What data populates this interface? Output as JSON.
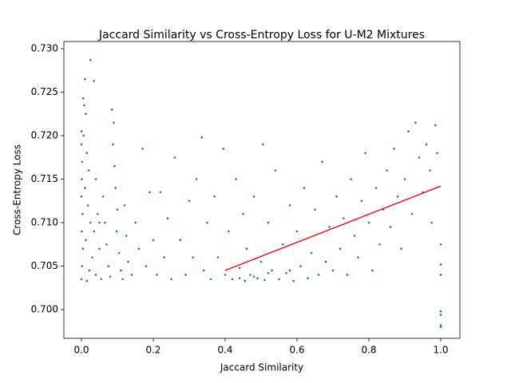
{
  "chart_data": {
    "type": "scatter",
    "title": "Jaccard Similarity vs Cross-Entropy Loss for U-M2 Mixtures",
    "xlabel": "Jaccard Similarity",
    "ylabel": "Cross-Entropy Loss",
    "color": "#1f77b4",
    "x": [
      0.0,
      0.0,
      0.002,
      0.001,
      0.0,
      0.003,
      0.001,
      0.004,
      0.002,
      0.0,
      0.005,
      0.01,
      0.025,
      0.035,
      0.008,
      0.012,
      0.006,
      0.015,
      0.02,
      0.01,
      0.018,
      0.025,
      0.012,
      0.03,
      0.022,
      0.015,
      0.04,
      0.045,
      0.035,
      0.05,
      0.04,
      0.055,
      0.06,
      0.065,
      0.07,
      0.075,
      0.08,
      0.085,
      0.09,
      0.088,
      0.092,
      0.095,
      0.1,
      0.098,
      0.105,
      0.11,
      0.115,
      0.12,
      0.125,
      0.13,
      0.14,
      0.15,
      0.16,
      0.17,
      0.18,
      0.19,
      0.2,
      0.21,
      0.22,
      0.23,
      0.24,
      0.25,
      0.26,
      0.275,
      0.29,
      0.3,
      0.31,
      0.32,
      0.335,
      0.34,
      0.35,
      0.36,
      0.37,
      0.38,
      0.395,
      0.4,
      0.41,
      0.42,
      0.43,
      0.44,
      0.45,
      0.455,
      0.46,
      0.47,
      0.48,
      0.49,
      0.5,
      0.505,
      0.51,
      0.52,
      0.53,
      0.54,
      0.55,
      0.56,
      0.57,
      0.58,
      0.59,
      0.6,
      0.61,
      0.62,
      0.63,
      0.64,
      0.65,
      0.66,
      0.67,
      0.68,
      0.69,
      0.7,
      0.71,
      0.72,
      0.73,
      0.74,
      0.75,
      0.76,
      0.77,
      0.78,
      0.79,
      0.8,
      0.81,
      0.82,
      0.83,
      0.84,
      0.85,
      0.86,
      0.87,
      0.88,
      0.89,
      0.9,
      0.91,
      0.92,
      0.93,
      0.94,
      0.95,
      0.96,
      0.97,
      0.975,
      0.985,
      0.99,
      1.0,
      1.0,
      1.0,
      1.0,
      1.0,
      1.0,
      1.0,
      0.48,
      0.52,
      0.44,
      0.58,
      0.05
    ],
    "values": [
      0.7205,
      0.719,
      0.717,
      0.715,
      0.713,
      0.711,
      0.709,
      0.707,
      0.705,
      0.7035,
      0.7243,
      0.7265,
      0.7287,
      0.7263,
      0.7235,
      0.7225,
      0.72,
      0.718,
      0.716,
      0.714,
      0.712,
      0.71,
      0.708,
      0.706,
      0.7045,
      0.7033,
      0.715,
      0.711,
      0.709,
      0.707,
      0.704,
      0.7035,
      0.713,
      0.71,
      0.7075,
      0.705,
      0.7038,
      0.723,
      0.7215,
      0.719,
      0.7165,
      0.714,
      0.7115,
      0.709,
      0.7065,
      0.7045,
      0.7035,
      0.712,
      0.7085,
      0.7055,
      0.704,
      0.71,
      0.707,
      0.7185,
      0.705,
      0.7135,
      0.708,
      0.704,
      0.7135,
      0.706,
      0.7105,
      0.7035,
      0.7175,
      0.708,
      0.704,
      0.7125,
      0.706,
      0.715,
      0.7198,
      0.7045,
      0.71,
      0.7035,
      0.713,
      0.706,
      0.7185,
      0.704,
      0.709,
      0.7035,
      0.715,
      0.7048,
      0.711,
      0.7033,
      0.707,
      0.704,
      0.713,
      0.7036,
      0.7055,
      0.719,
      0.7034,
      0.71,
      0.7045,
      0.716,
      0.7035,
      0.7075,
      0.7042,
      0.712,
      0.7033,
      0.709,
      0.705,
      0.714,
      0.7036,
      0.7065,
      0.7115,
      0.704,
      0.717,
      0.7055,
      0.7095,
      0.7045,
      0.713,
      0.707,
      0.7105,
      0.704,
      0.715,
      0.7085,
      0.706,
      0.7125,
      0.718,
      0.71,
      0.7045,
      0.714,
      0.7075,
      0.7115,
      0.716,
      0.7095,
      0.7185,
      0.713,
      0.707,
      0.715,
      0.7205,
      0.711,
      0.7215,
      0.7175,
      0.7135,
      0.719,
      0.716,
      0.71,
      0.7212,
      0.718,
      0.6998,
      0.6994,
      0.6982,
      0.698,
      0.704,
      0.7075,
      0.7052,
      0.7038,
      0.7042,
      0.7036,
      0.7045,
      0.71
    ],
    "fit": {
      "x": [
        0.4,
        1.0
      ],
      "values": [
        0.7045,
        0.7142
      ],
      "color": "#e41a1c"
    },
    "xlim": [
      -0.0489,
      1.0533
    ],
    "xticks": [
      {
        "value": 0,
        "label": "0.0"
      },
      0.2,
      0.4,
      0.6,
      0.8,
      {
        "value": 1,
        "label": "1.0"
      }
    ],
    "ylim": [
      0.6967,
      0.73083
    ],
    "yticks": [
      {
        "value": 0.7,
        "label": "0.700"
      },
      0.705,
      {
        "value": 0.71,
        "label": "0.710"
      },
      0.715,
      {
        "value": 0.72,
        "label": "0.720"
      },
      0.725,
      {
        "value": 0.73,
        "label": "0.730"
      }
    ]
  }
}
